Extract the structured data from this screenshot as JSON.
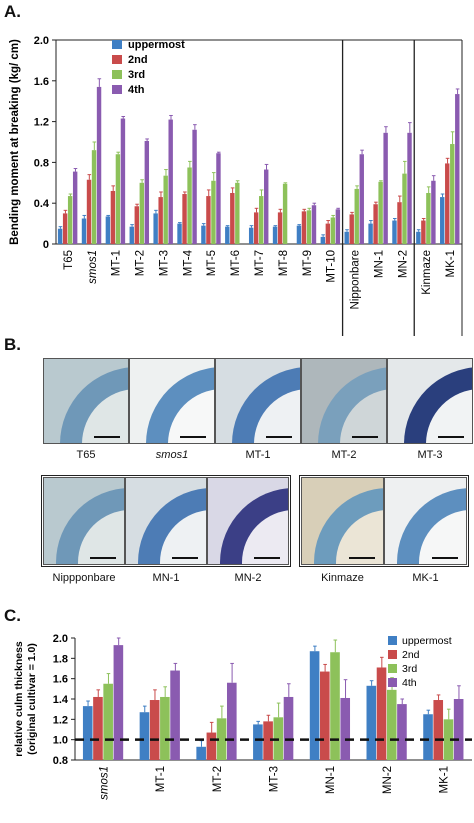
{
  "panelA": {
    "label": "A.",
    "chart_data": {
      "type": "bar",
      "ylabel": "Bending moment at breaking (kg/ cm)",
      "ylim": [
        0,
        2.0
      ],
      "yticks": [
        "0",
        "0.4",
        "0.8",
        "1.2",
        "1.6",
        "2.0"
      ],
      "categories": [
        "T65",
        "smos1",
        "MT-1",
        "MT-2",
        "MT-3",
        "MT-4",
        "MT-5",
        "MT-6",
        "MT-7",
        "MT-8",
        "MT-9",
        "MT-10",
        "Nipponbare",
        "MN-1",
        "MN-2",
        "Kinmaze",
        "MK-1"
      ],
      "group_dividers_after": [
        11,
        14
      ],
      "legend_position": "top-left",
      "series": [
        {
          "name": "uppermost",
          "color": "#3f7fc4",
          "values": [
            0.15,
            0.25,
            0.27,
            0.17,
            0.3,
            0.2,
            0.18,
            0.17,
            0.16,
            0.17,
            0.18,
            0.07,
            0.12,
            0.2,
            0.23,
            0.12,
            0.46
          ],
          "errors": [
            0.02,
            0.03,
            0.01,
            0.02,
            0.03,
            0.01,
            0.02,
            0.01,
            0.02,
            0.01,
            0.01,
            0.02,
            0.02,
            0.03,
            0.02,
            0.02,
            0.03
          ]
        },
        {
          "name": "2nd",
          "color": "#c94b4b",
          "values": [
            0.3,
            0.63,
            0.52,
            0.37,
            0.46,
            0.49,
            0.47,
            0.5,
            0.31,
            0.31,
            0.32,
            0.2,
            0.29,
            0.39,
            0.41,
            0.23,
            0.79
          ],
          "errors": [
            0.03,
            0.05,
            0.05,
            0.02,
            0.05,
            0.02,
            0.06,
            0.05,
            0.04,
            0.03,
            0.02,
            0.03,
            0.02,
            0.02,
            0.06,
            0.02,
            0.05
          ]
        },
        {
          "name": "3rd",
          "color": "#8dc15a",
          "values": [
            0.47,
            0.92,
            0.88,
            0.6,
            0.67,
            0.75,
            0.62,
            0.6,
            0.47,
            0.59,
            0.33,
            0.26,
            0.54,
            0.61,
            0.69,
            0.5,
            0.98
          ],
          "errors": [
            0.02,
            0.08,
            0.02,
            0.03,
            0.06,
            0.06,
            0.08,
            0.02,
            0.06,
            0.01,
            0.02,
            0.02,
            0.03,
            0.01,
            0.12,
            0.06,
            0.12
          ]
        },
        {
          "name": "4th",
          "color": "#8a5bb0",
          "values": [
            0.71,
            1.54,
            1.23,
            1.01,
            1.22,
            1.12,
            0.89,
            0.0,
            0.73,
            0.0,
            0.38,
            0.34,
            0.88,
            1.09,
            1.09,
            0.62,
            1.47
          ],
          "errors": [
            0.03,
            0.08,
            0.02,
            0.02,
            0.04,
            0.05,
            0.01,
            0.0,
            0.05,
            0.0,
            0.02,
            0.01,
            0.04,
            0.06,
            0.1,
            0.05,
            0.05
          ]
        }
      ]
    }
  },
  "panelB": {
    "label": "B.",
    "top_row": [
      "T65",
      "smos1",
      "MT-1",
      "MT-2",
      "MT-3"
    ],
    "bottom_left": [
      "Nippponbare",
      "MN-1",
      "MN-2"
    ],
    "bottom_right": [
      "Kinmaze",
      "MK-1"
    ]
  },
  "panelC": {
    "label": "C.",
    "chart_data": {
      "type": "bar",
      "ylabel_line1": "relative culm thickness",
      "ylabel_line2": "(original cultivar = 1.0)",
      "ylim": [
        0.8,
        2.0
      ],
      "yticks": [
        "0.8",
        "1.0",
        "1.2",
        "1.4",
        "1.6",
        "1.8",
        "2.0"
      ],
      "reference_line": 1.0,
      "categories": [
        "smos1",
        "MT-1",
        "MT-2",
        "MT-3",
        "MN-1",
        "MN-2",
        "MK-1"
      ],
      "legend_position": "top-right",
      "series": [
        {
          "name": "uppermost",
          "color": "#3f7fc4",
          "values": [
            1.33,
            1.27,
            0.93,
            1.15,
            1.87,
            1.53,
            1.25
          ],
          "errors": [
            0.05,
            0.06,
            0.06,
            0.03,
            0.05,
            0.05,
            0.04
          ]
        },
        {
          "name": "2nd",
          "color": "#c94b4b",
          "values": [
            1.42,
            1.39,
            1.07,
            1.18,
            1.67,
            1.71,
            1.39
          ],
          "errors": [
            0.07,
            0.1,
            0.1,
            0.06,
            0.07,
            0.1,
            0.05
          ]
        },
        {
          "name": "3rd",
          "color": "#8dc15a",
          "values": [
            1.55,
            1.42,
            1.21,
            1.22,
            1.86,
            1.49,
            1.2
          ],
          "errors": [
            0.1,
            0.1,
            0.12,
            0.14,
            0.12,
            0.12,
            0.1
          ]
        },
        {
          "name": "4th",
          "color": "#8a5bb0",
          "values": [
            1.93,
            1.68,
            1.56,
            1.42,
            1.41,
            1.35,
            1.4
          ],
          "errors": [
            0.07,
            0.07,
            0.19,
            0.13,
            0.18,
            0.05,
            0.13
          ]
        }
      ]
    }
  }
}
